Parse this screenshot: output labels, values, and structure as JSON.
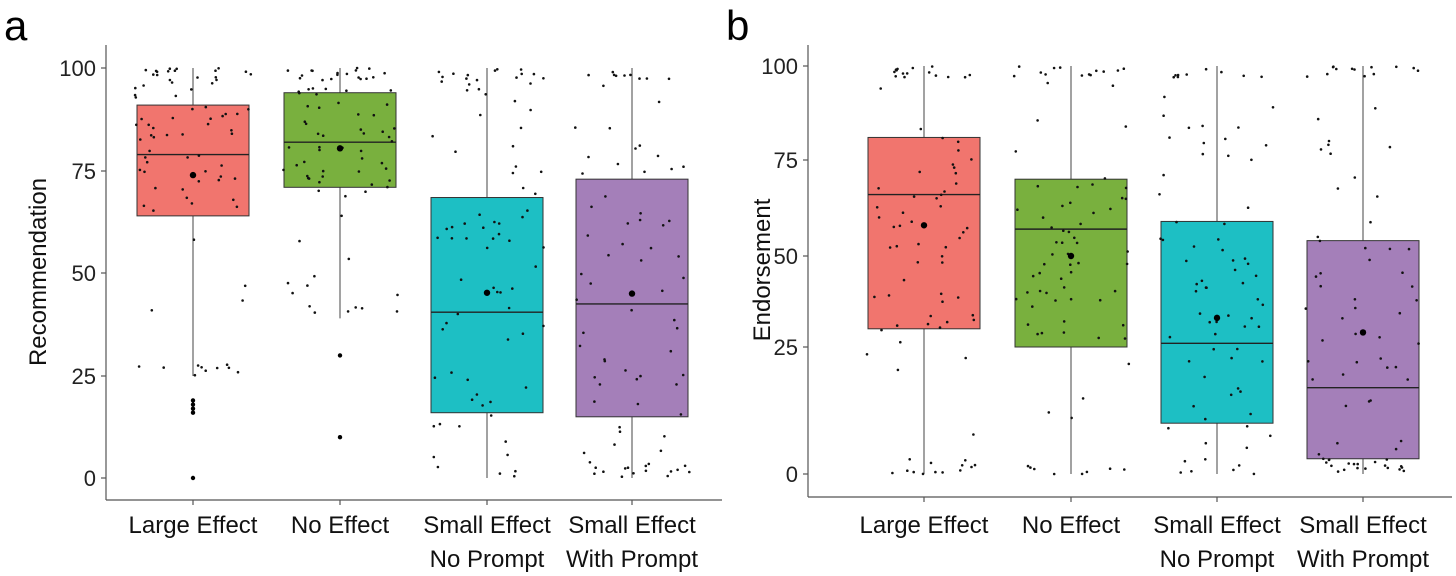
{
  "chart_data": [
    {
      "panel": "a",
      "type": "box",
      "ylabel": "Recommendation",
      "ylim": [
        0,
        100
      ],
      "yticks": [
        0,
        25,
        50,
        75,
        100
      ],
      "categories": [
        "Large Effect",
        "No Effect",
        "Small Effect\nNo Prompt",
        "Small Effect\nWith Prompt"
      ],
      "colors": [
        "#f1756e",
        "#79b03e",
        "#1dbfc4",
        "#a47fb9"
      ],
      "boxes": [
        {
          "whisker_low": 25,
          "q1": 64,
          "median": 79,
          "q3": 91,
          "whisker_high": 100,
          "mean": 74
        },
        {
          "whisker_low": 39,
          "q1": 71,
          "median": 82,
          "q3": 94,
          "whisker_high": 100,
          "mean": 80.5
        },
        {
          "whisker_low": 0,
          "q1": 16,
          "median": 40.5,
          "q3": 68.5,
          "whisker_high": 100,
          "mean": 45.2
        },
        {
          "whisker_low": 0,
          "q1": 15,
          "median": 42.5,
          "q3": 73,
          "whisker_high": 100,
          "mean": 45
        }
      ],
      "outliers": [
        {
          "category": 0,
          "values": [
            0,
            16,
            17,
            18,
            19
          ]
        },
        {
          "category": 1,
          "values": [
            10,
            30
          ]
        }
      ],
      "jitter": "individual responses shown as jittered points",
      "grid": false
    },
    {
      "panel": "b",
      "type": "box",
      "ylabel": "Endorsement",
      "ylim": [
        0,
        100
      ],
      "yticks": [
        0,
        25,
        50,
        75,
        100
      ],
      "tick_style": "stretched scale (ticks not evenly spaced)",
      "categories": [
        "Large Effect",
        "No Effect",
        "Small Effect\nNo Prompt",
        "Small Effect\nWith Prompt"
      ],
      "colors": [
        "#f1756e",
        "#79b03e",
        "#1dbfc4",
        "#a47fb9"
      ],
      "boxes": [
        {
          "whisker_low": 0,
          "q1": 30,
          "median": 66,
          "q3": 81,
          "whisker_high": 100,
          "mean": 58
        },
        {
          "whisker_low": 0,
          "q1": 25,
          "median": 57,
          "q3": 70,
          "whisker_high": 100,
          "mean": 50
        },
        {
          "whisker_low": 0,
          "q1": 10,
          "median": 26,
          "q3": 59,
          "whisker_high": 100,
          "mean": 33
        },
        {
          "whisker_low": 0,
          "q1": 3,
          "median": 17,
          "q3": 54,
          "whisker_high": 100,
          "mean": 29
        }
      ],
      "jitter": "individual responses shown as jittered points",
      "grid": false
    }
  ]
}
